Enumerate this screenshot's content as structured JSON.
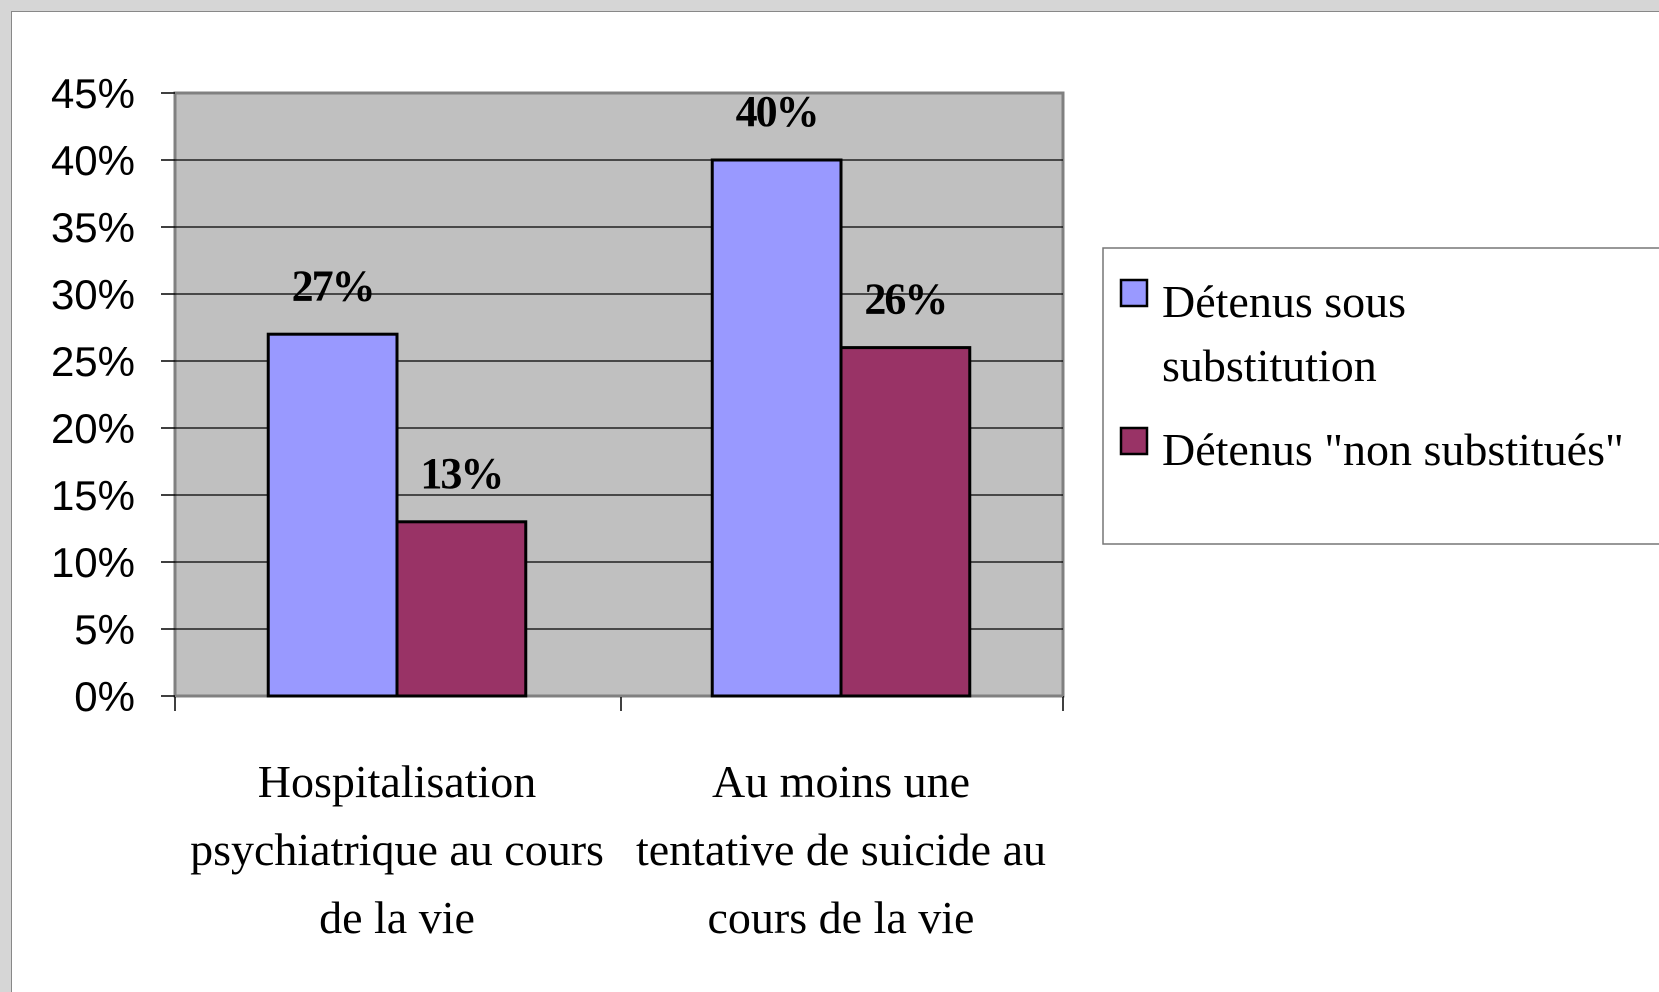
{
  "chart_data": {
    "type": "bar",
    "categories": [
      "Hospitalisation psychiatrique au cours de la vie",
      "Au moins une tentative de suicide au cours de la vie"
    ],
    "series": [
      {
        "name": "Détenus sous substitution",
        "color": "#9999ff",
        "values": [
          27,
          40
        ],
        "value_labels": [
          "27%",
          "40%"
        ]
      },
      {
        "name": "Détenus \"non substitués\"",
        "color": "#993366",
        "values": [
          13,
          26
        ],
        "value_labels": [
          "13%",
          "26%"
        ]
      }
    ],
    "ylim": [
      0,
      45
    ],
    "yticks": [
      {
        "value": 0,
        "label": "0%"
      },
      {
        "value": 5,
        "label": "5%"
      },
      {
        "value": 10,
        "label": "10%"
      },
      {
        "value": 15,
        "label": "15%"
      },
      {
        "value": 20,
        "label": "20%"
      },
      {
        "value": 25,
        "label": "25%"
      },
      {
        "value": 30,
        "label": "30%"
      },
      {
        "value": 35,
        "label": "35%"
      },
      {
        "value": 40,
        "label": "40%"
      },
      {
        "value": 45,
        "label": "45%"
      }
    ],
    "grid": true,
    "legend": "right"
  }
}
